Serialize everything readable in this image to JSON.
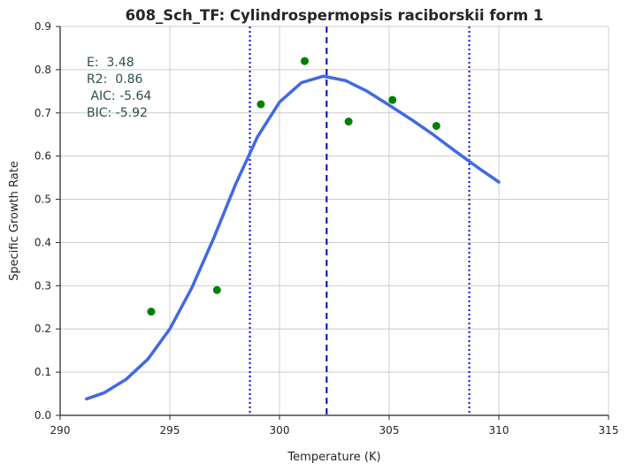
{
  "chart_data": {
    "type": "scatter",
    "title": "608_Sch_TF: Cylindrospermopsis raciborskii form 1",
    "xlabel": "Temperature (K)",
    "ylabel": "Specific Growth Rate",
    "xlim": [
      290,
      315
    ],
    "ylim": [
      0,
      0.9
    ],
    "xticks": [
      290,
      295,
      300,
      305,
      310,
      315
    ],
    "yticks": [
      0.0,
      0.1,
      0.2,
      0.3,
      0.4,
      0.5,
      0.6,
      0.7,
      0.8,
      0.9
    ],
    "xtick_labels": [
      "290",
      "295",
      "300",
      "305",
      "310",
      "315"
    ],
    "ytick_labels": [
      "0.0",
      "0.1",
      "0.2",
      "0.3",
      "0.4",
      "0.5",
      "0.6",
      "0.7",
      "0.8",
      "0.9"
    ],
    "grid": true,
    "points": {
      "color": "#008000",
      "x": [
        294.15,
        297.15,
        299.15,
        301.15,
        303.15,
        305.15,
        307.15
      ],
      "y": [
        0.24,
        0.29,
        0.72,
        0.82,
        0.68,
        0.73,
        0.67
      ]
    },
    "fit_curve": {
      "color": "#4169e1",
      "x": [
        291.2,
        292.0,
        293.0,
        294.0,
        295.0,
        296.0,
        297.0,
        298.0,
        299.0,
        300.0,
        301.0,
        302.0,
        303.0,
        304.0,
        305.0,
        306.0,
        307.0,
        308.0,
        309.0,
        310.0
      ],
      "y": [
        0.038,
        0.052,
        0.083,
        0.13,
        0.2,
        0.295,
        0.41,
        0.535,
        0.645,
        0.725,
        0.77,
        0.785,
        0.775,
        0.75,
        0.718,
        0.685,
        0.65,
        0.612,
        0.575,
        0.54
      ]
    },
    "vlines": [
      {
        "x": 302.15,
        "style": "dashed",
        "color": "#0000cd"
      },
      {
        "x": 298.65,
        "style": "dotted",
        "color": "#0000ff"
      },
      {
        "x": 308.65,
        "style": "dotted",
        "color": "#0000ff"
      }
    ],
    "annotations": [
      {
        "text": "E:  3.48"
      },
      {
        "text": "R2:  0.86"
      },
      {
        "text": " AIC: -5.64"
      },
      {
        "text": "BIC: -5.92"
      }
    ]
  }
}
